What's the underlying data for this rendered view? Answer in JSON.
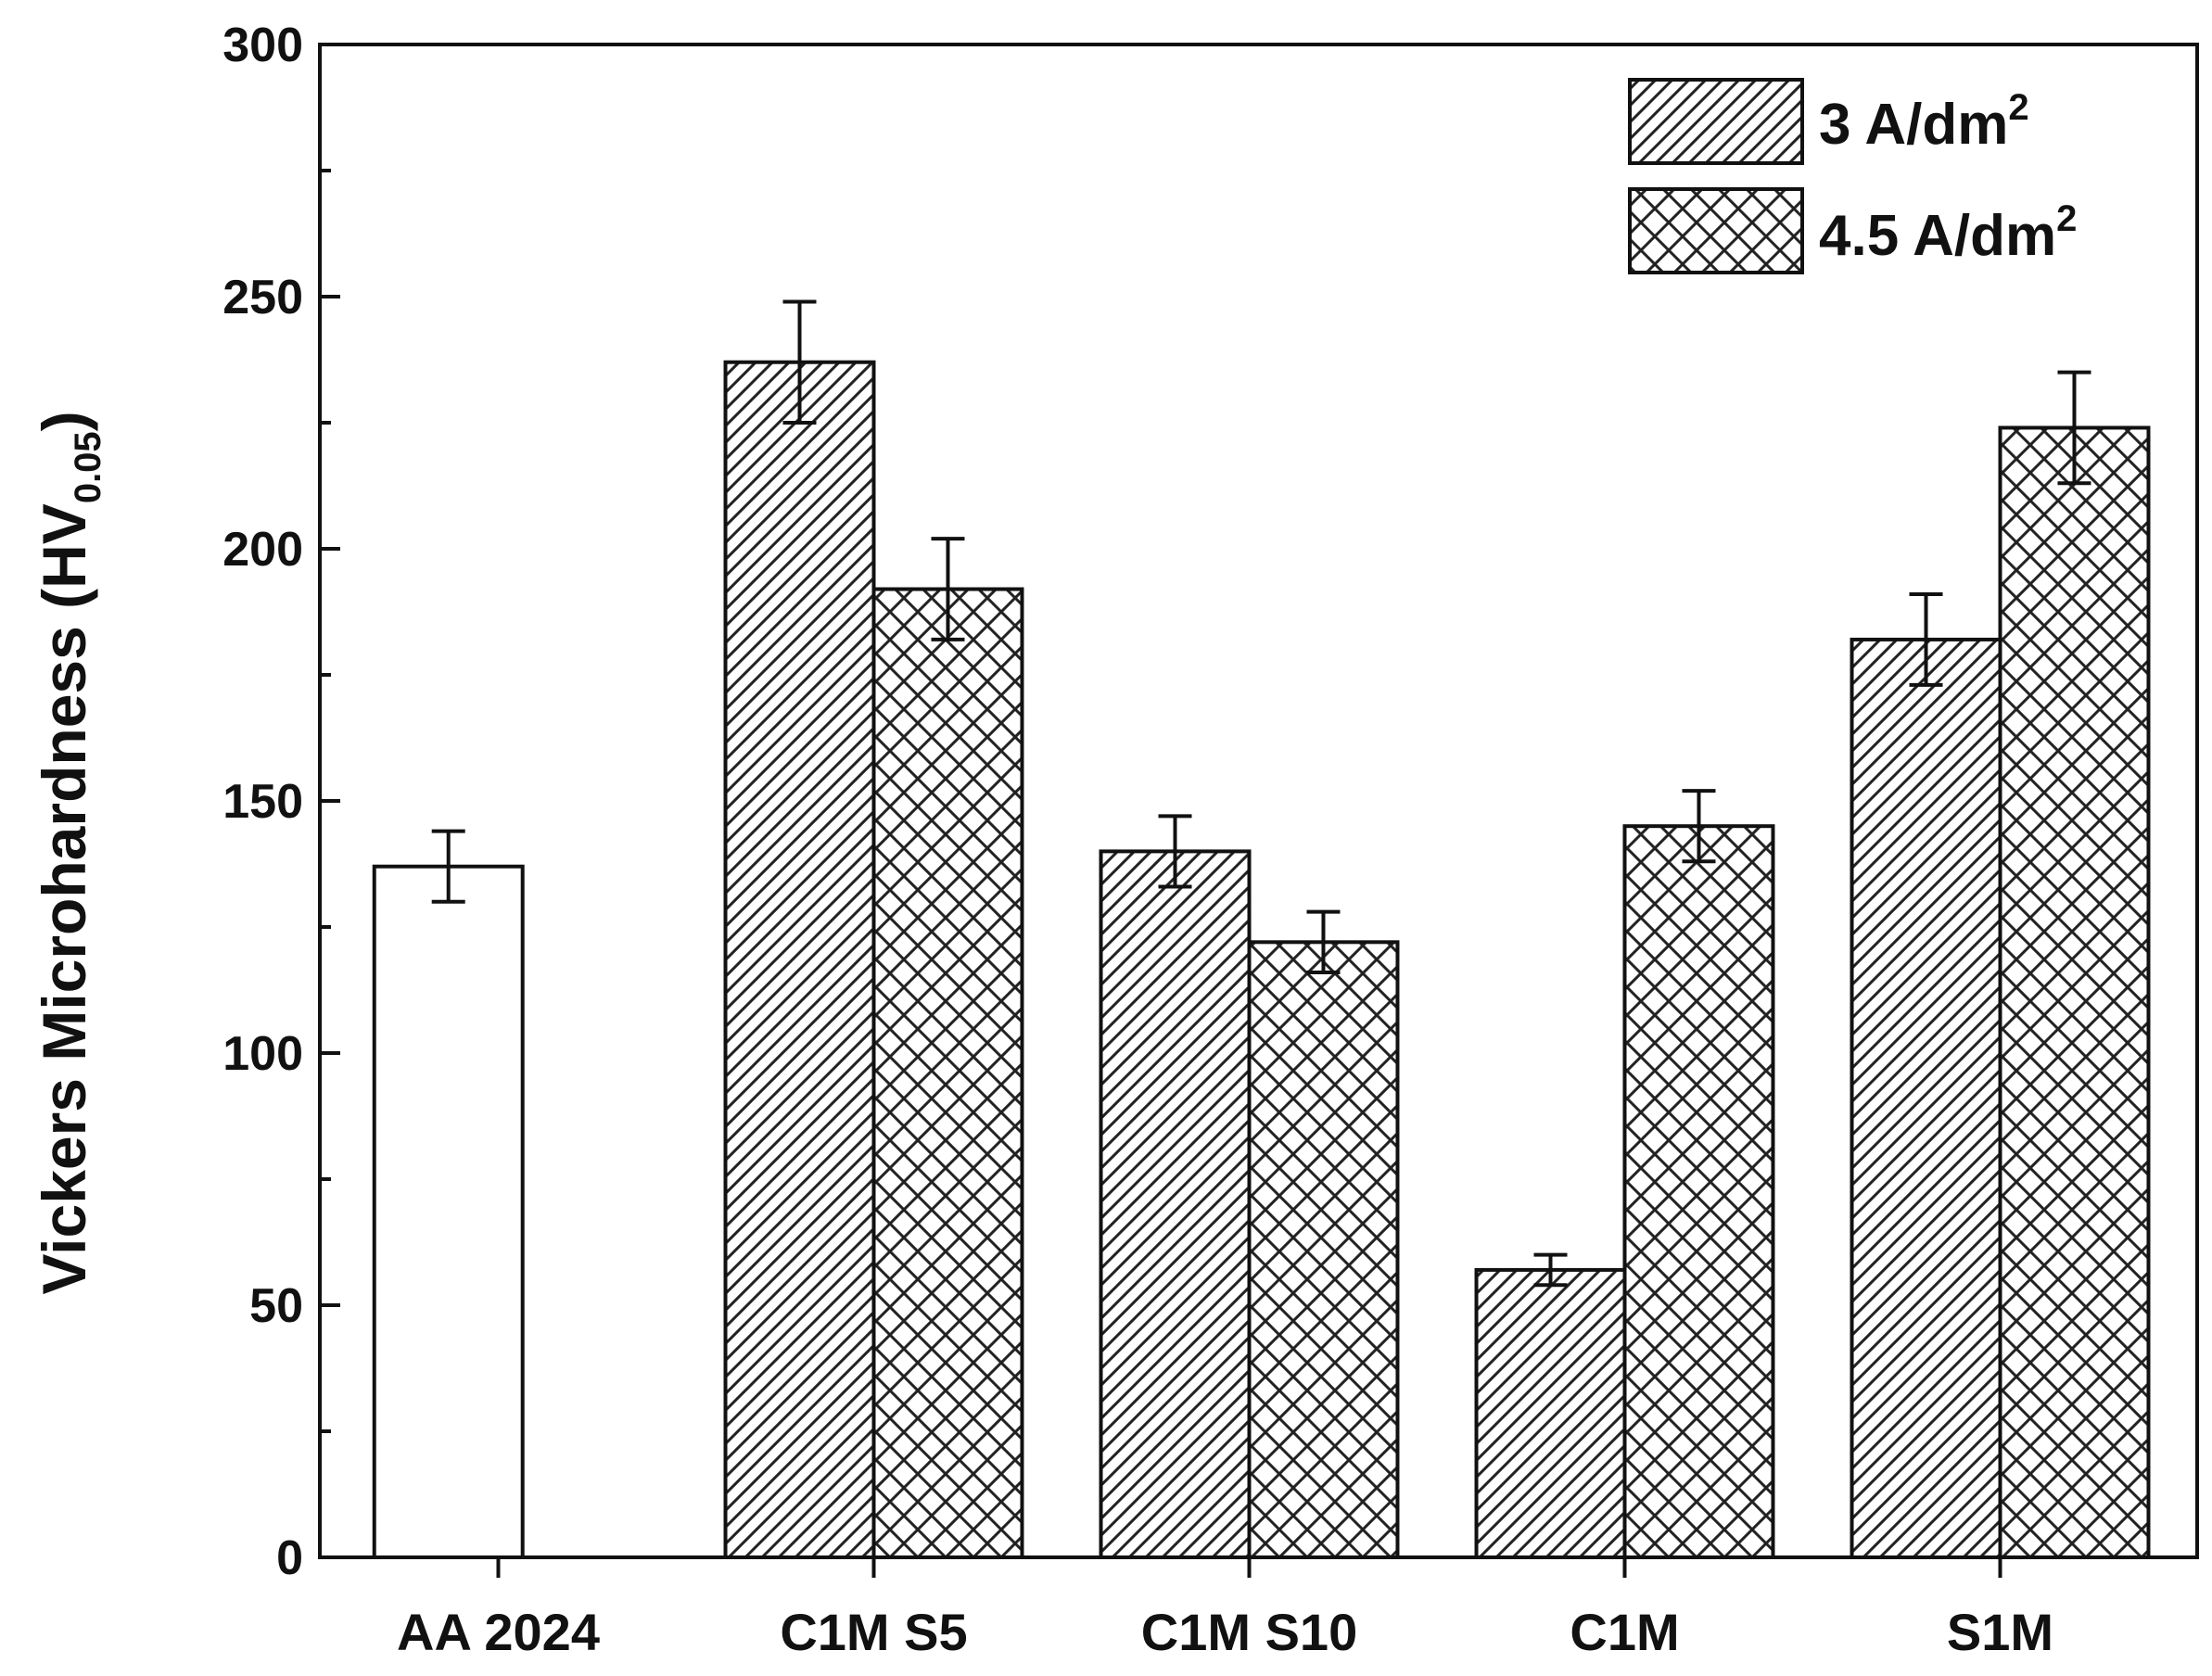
{
  "chart_data": {
    "type": "bar",
    "ylabel": {
      "main": "Vickers Microhardness (HV",
      "sub": "0.05",
      "close": ")"
    },
    "ylim": [
      0,
      300
    ],
    "yticks": [
      "0",
      "50",
      "100",
      "150",
      "200",
      "250",
      "300"
    ],
    "categories": [
      "AA 2024",
      "C1M S5",
      "C1M S10",
      "C1M",
      "S1M"
    ],
    "reference": {
      "category": "AA 2024",
      "value": 137,
      "error": 7
    },
    "series": [
      {
        "name": {
          "text": "3 A/dm",
          "sup": "2"
        },
        "pattern": "diagonal-hatch",
        "values": [
          null,
          237,
          140,
          57,
          182
        ],
        "errors": [
          null,
          12,
          7,
          3,
          9
        ]
      },
      {
        "name": {
          "text": "4.5 A/dm",
          "sup": "2"
        },
        "pattern": "cross-hatch",
        "values": [
          null,
          192,
          122,
          145,
          224
        ],
        "errors": [
          null,
          10,
          6,
          7,
          11
        ]
      }
    ],
    "legend_position": "top-right",
    "grid": false
  }
}
